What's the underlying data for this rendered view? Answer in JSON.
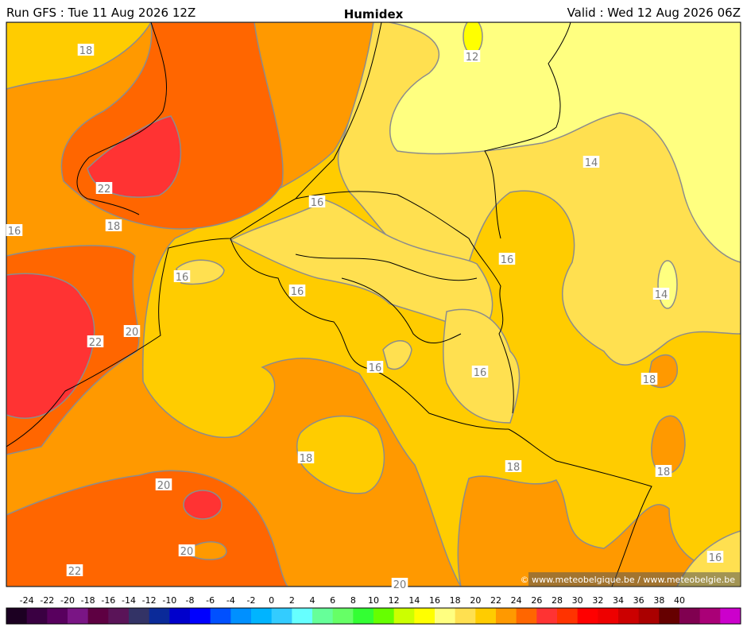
{
  "header": {
    "run": "Run GFS : Tue 11 Aug 2026 12Z",
    "title": "Humidex",
    "valid": "Valid : Wed 12 Aug 2026 06Z"
  },
  "contour_labels": [
    "18",
    "12",
    "22",
    "18",
    "16",
    "16",
    "14",
    "16",
    "16",
    "16",
    "14",
    "20",
    "22",
    "16",
    "16",
    "18",
    "18",
    "18",
    "18",
    "20",
    "20",
    "22",
    "20",
    "16"
  ],
  "credit": "© www.meteobelgique.be / www.meteobelgie.be",
  "legend": {
    "ticks": [
      -24,
      -22,
      -20,
      -18,
      -16,
      -14,
      -12,
      -10,
      -8,
      -6,
      -4,
      -2,
      0,
      2,
      4,
      6,
      8,
      10,
      12,
      14,
      16,
      18,
      20,
      22,
      24,
      26,
      28,
      30,
      32,
      34,
      36,
      38,
      40
    ],
    "colors": [
      "#1c0022",
      "#3a0042",
      "#58005e",
      "#7a1585",
      "#5e0042",
      "#5a1458",
      "#333366",
      "#0a2a99",
      "#0000cc",
      "#0000ff",
      "#0050ff",
      "#0090ff",
      "#00b4ff",
      "#33ccff",
      "#66ffff",
      "#66ff99",
      "#66ff66",
      "#33ff33",
      "#66ff00",
      "#ccff00",
      "#ffff00",
      "#ffff80",
      "#ffe050",
      "#ffcc00",
      "#ff9900",
      "#ff6600",
      "#ff3333",
      "#ff3300",
      "#ff0000",
      "#ee0000",
      "#cc0000",
      "#aa0000",
      "#660000",
      "#800050",
      "#aa0077",
      "#cc00cc"
    ]
  }
}
